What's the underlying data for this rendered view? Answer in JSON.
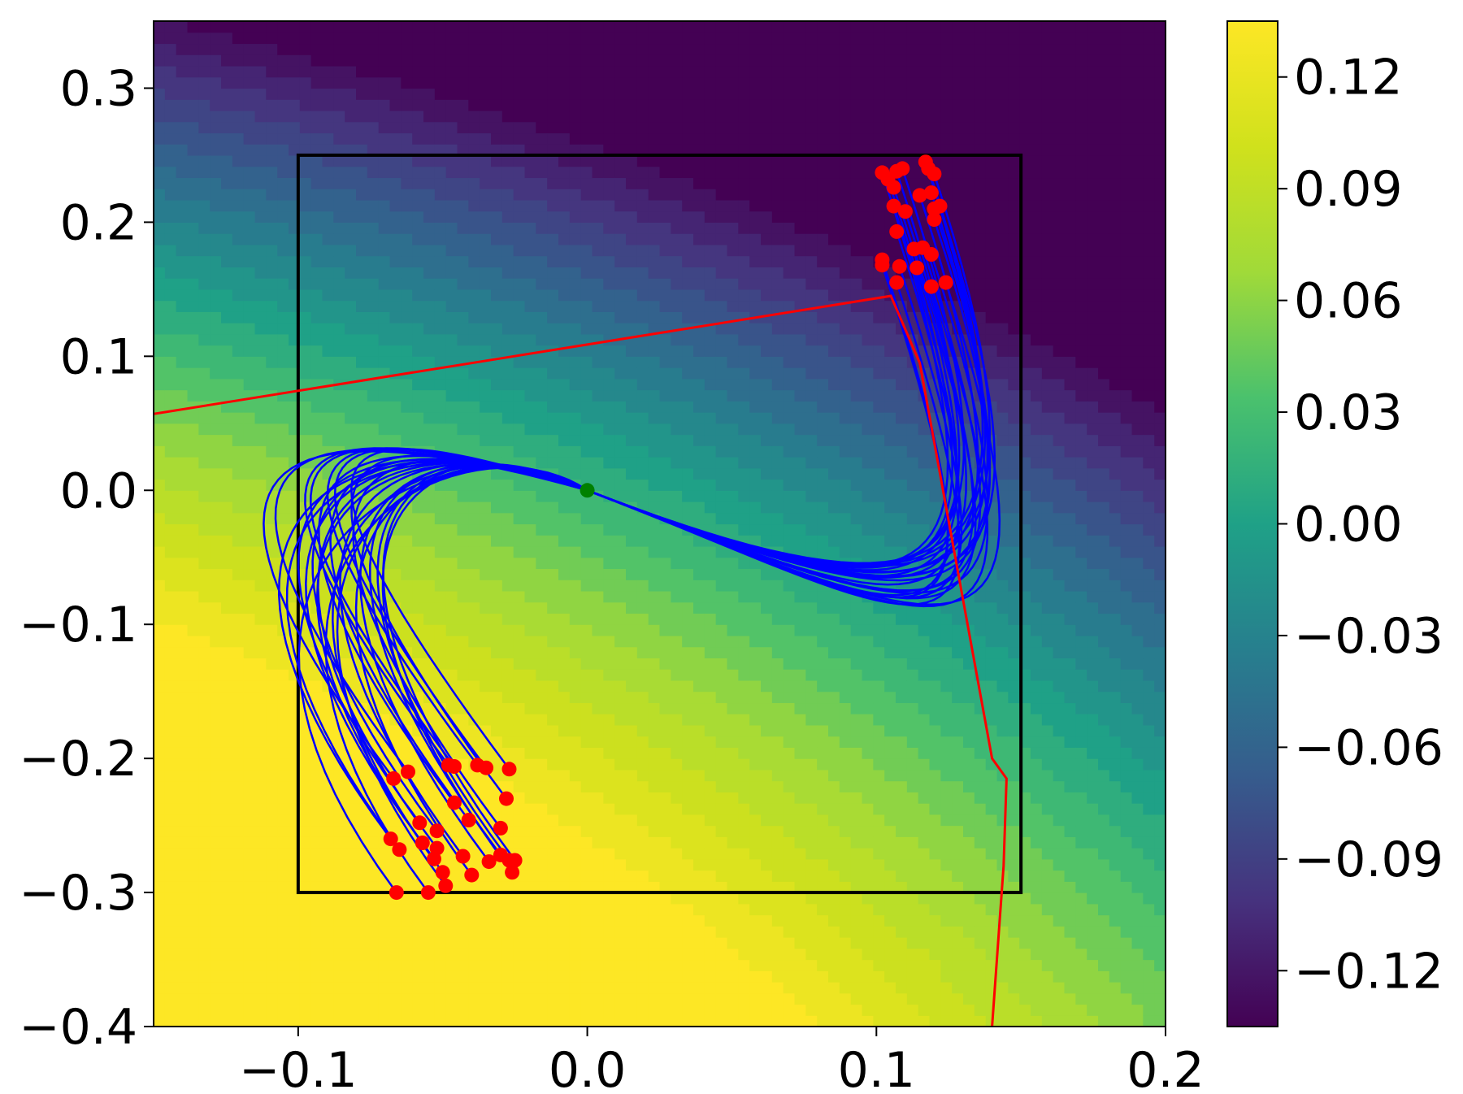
{
  "chart_data": {
    "type": "contour",
    "xlim": [
      -0.15,
      0.2
    ],
    "ylim": [
      -0.4,
      0.35
    ],
    "x_ticks": [
      "−0.1",
      "0.0",
      "0.1",
      "0.2"
    ],
    "x_tick_values": [
      -0.1,
      0.0,
      0.1,
      0.2
    ],
    "y_ticks": [
      "−0.4",
      "−0.3",
      "−0.2",
      "−0.1",
      "0.0",
      "0.1",
      "0.2",
      "0.3"
    ],
    "y_tick_values": [
      -0.4,
      -0.3,
      -0.2,
      -0.1,
      0.0,
      0.1,
      0.2,
      0.3
    ],
    "colorbar": {
      "colormap": "viridis",
      "range": [
        -0.135,
        0.135
      ],
      "ticks": [
        "−0.12",
        "−0.09",
        "−0.06",
        "−0.03",
        "0.00",
        "0.03",
        "0.06",
        "0.09",
        "0.12"
      ],
      "tick_values": [
        -0.12,
        -0.09,
        -0.06,
        -0.03,
        0.0,
        0.03,
        0.06,
        0.09,
        0.12
      ]
    },
    "box": {
      "x": [
        -0.1,
        0.15
      ],
      "y": [
        -0.3,
        0.25
      ],
      "color": "#000000"
    },
    "equilibrium_point": {
      "x": 0.0,
      "y": 0.0,
      "color": "#008000"
    },
    "boundary_line": {
      "color": "#ff0000",
      "points": [
        [
          -0.15,
          0.057
        ],
        [
          0.105,
          0.145
        ],
        [
          0.115,
          0.095
        ],
        [
          0.14,
          -0.2
        ],
        [
          0.145,
          -0.215
        ],
        [
          0.144,
          -0.28
        ],
        [
          0.14,
          -0.4
        ]
      ]
    },
    "trajectory_color": "#0000ff",
    "endpoint_color": "#ff0000",
    "start_points_lower": [
      [
        -0.067,
        -0.215
      ],
      [
        -0.062,
        -0.21
      ],
      [
        -0.048,
        -0.205
      ],
      [
        -0.046,
        -0.206
      ],
      [
        -0.038,
        -0.205
      ],
      [
        -0.035,
        -0.207
      ],
      [
        -0.027,
        -0.208
      ],
      [
        -0.028,
        -0.23
      ],
      [
        -0.046,
        -0.233
      ],
      [
        -0.041,
        -0.246
      ],
      [
        -0.03,
        -0.252
      ],
      [
        -0.058,
        -0.248
      ],
      [
        -0.052,
        -0.254
      ],
      [
        -0.068,
        -0.26
      ],
      [
        -0.065,
        -0.268
      ],
      [
        -0.057,
        -0.263
      ],
      [
        -0.052,
        -0.267
      ],
      [
        -0.053,
        -0.275
      ],
      [
        -0.043,
        -0.273
      ],
      [
        -0.034,
        -0.277
      ],
      [
        -0.03,
        -0.272
      ],
      [
        -0.027,
        -0.276
      ],
      [
        -0.025,
        -0.276
      ],
      [
        -0.026,
        -0.285
      ],
      [
        -0.05,
        -0.285
      ],
      [
        -0.04,
        -0.287
      ],
      [
        -0.049,
        -0.295
      ],
      [
        -0.066,
        -0.3
      ],
      [
        -0.055,
        -0.3
      ]
    ],
    "start_points_upper": [
      [
        0.102,
        0.237
      ],
      [
        0.104,
        0.232
      ],
      [
        0.107,
        0.238
      ],
      [
        0.109,
        0.24
      ],
      [
        0.117,
        0.245
      ],
      [
        0.118,
        0.24
      ],
      [
        0.12,
        0.236
      ],
      [
        0.106,
        0.226
      ],
      [
        0.115,
        0.22
      ],
      [
        0.119,
        0.222
      ],
      [
        0.12,
        0.21
      ],
      [
        0.122,
        0.212
      ],
      [
        0.106,
        0.212
      ],
      [
        0.11,
        0.208
      ],
      [
        0.12,
        0.202
      ],
      [
        0.107,
        0.193
      ],
      [
        0.113,
        0.18
      ],
      [
        0.116,
        0.181
      ],
      [
        0.119,
        0.176
      ],
      [
        0.102,
        0.172
      ],
      [
        0.102,
        0.168
      ],
      [
        0.108,
        0.167
      ],
      [
        0.114,
        0.166
      ],
      [
        0.107,
        0.155
      ],
      [
        0.119,
        0.152
      ],
      [
        0.124,
        0.155
      ]
    ]
  }
}
